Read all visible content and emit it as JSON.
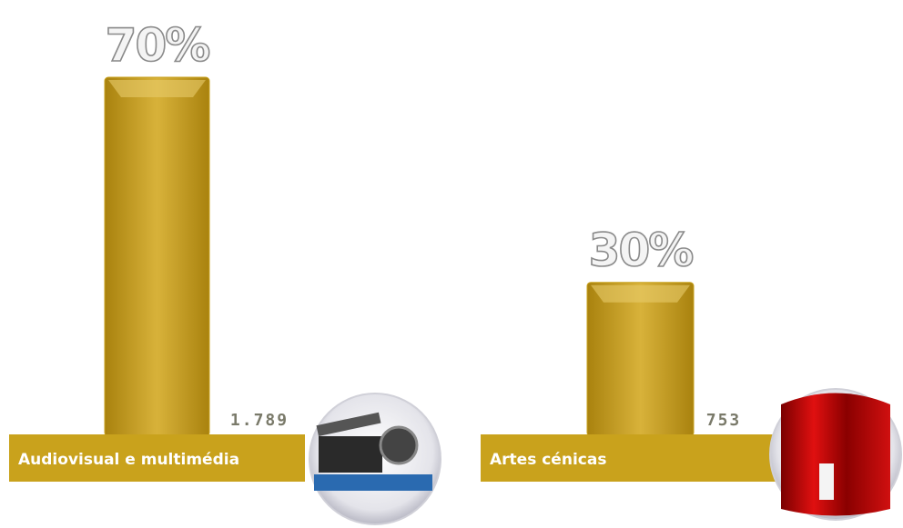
{
  "chart_data": {
    "type": "bar",
    "categories": [
      "Audiovisual e multimédia",
      "Artes cénicas"
    ],
    "values": [
      70,
      30
    ],
    "value_labels": [
      "70%",
      "30%"
    ],
    "counts": {
      "values": [
        1789,
        753
      ],
      "value_labels": [
        "1.789",
        "753"
      ]
    },
    "color": "#c9a21c"
  }
}
